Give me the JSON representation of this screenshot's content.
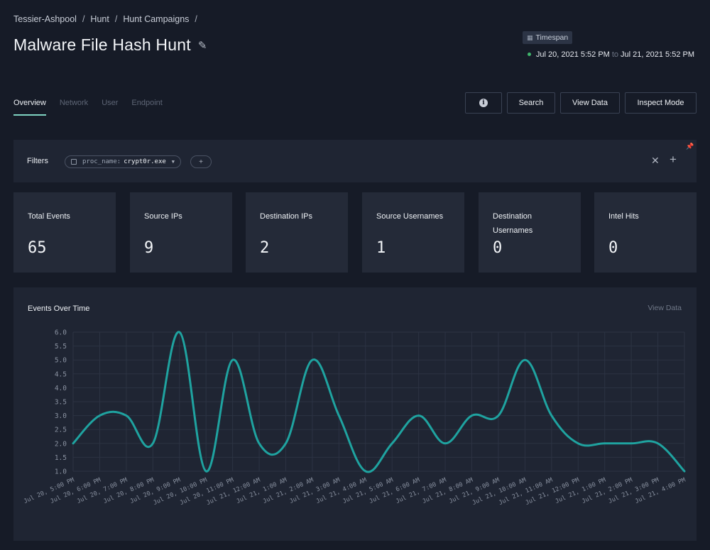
{
  "breadcrumb": [
    "Tessier-Ashpool",
    "Hunt",
    "Hunt Campaigns"
  ],
  "breadcrumb_sep": "/",
  "page": {
    "title": "Malware File Hash Hunt"
  },
  "timespan": {
    "label": "Timespan",
    "from": "Jul 20, 2021 5:52 PM",
    "to_word": "to",
    "to": "Jul 21, 2021 5:52 PM"
  },
  "tabs": [
    {
      "label": "Overview",
      "active": true
    },
    {
      "label": "Network"
    },
    {
      "label": "User"
    },
    {
      "label": "Endpoint"
    }
  ],
  "actions": {
    "search": "Search",
    "view_data": "View Data",
    "inspect": "Inspect Mode"
  },
  "filters": {
    "label": "Filters",
    "chip": {
      "key": "proc_name:",
      "value": "crypt0r.exe"
    }
  },
  "stats": [
    {
      "label": "Total Events",
      "value": "65"
    },
    {
      "label": "Source IPs",
      "value": "9"
    },
    {
      "label": "Destination IPs",
      "value": "2"
    },
    {
      "label": "Source Usernames",
      "value": "1"
    },
    {
      "label": "Destination Usernames",
      "value": "0"
    },
    {
      "label": "Intel Hits",
      "value": "0"
    }
  ],
  "chart": {
    "title": "Events Over Time",
    "link": "View Data"
  },
  "chart_data": {
    "type": "line",
    "title": "Events Over Time",
    "x": [
      "Jul 20, 5:00 PM",
      "Jul 20, 6:00 PM",
      "Jul 20, 7:00 PM",
      "Jul 20, 8:00 PM",
      "Jul 20, 9:00 PM",
      "Jul 20, 10:00 PM",
      "Jul 20, 11:00 PM",
      "Jul 21, 12:00 AM",
      "Jul 21, 1:00 AM",
      "Jul 21, 2:00 AM",
      "Jul 21, 3:00 AM",
      "Jul 21, 4:00 AM",
      "Jul 21, 5:00 AM",
      "Jul 21, 6:00 AM",
      "Jul 21, 7:00 AM",
      "Jul 21, 8:00 AM",
      "Jul 21, 9:00 AM",
      "Jul 21, 10:00 AM",
      "Jul 21, 11:00 AM",
      "Jul 21, 12:00 PM",
      "Jul 21, 1:00 PM",
      "Jul 21, 2:00 PM",
      "Jul 21, 3:00 PM",
      "Jul 21, 4:00 PM"
    ],
    "series": [
      {
        "values": [
          2,
          3,
          3,
          2,
          6,
          1,
          5,
          2,
          2,
          5,
          3,
          1,
          2,
          3,
          2,
          3,
          3,
          5,
          3,
          2,
          2,
          2,
          2,
          1
        ]
      }
    ],
    "yticks": [
      "1.0",
      "1.5",
      "2.0",
      "2.5",
      "3.0",
      "3.5",
      "4.0",
      "4.5",
      "5.0",
      "5.5",
      "6.0"
    ],
    "ylim": [
      1,
      6
    ],
    "grid": true,
    "color": "#1fa3a0"
  }
}
